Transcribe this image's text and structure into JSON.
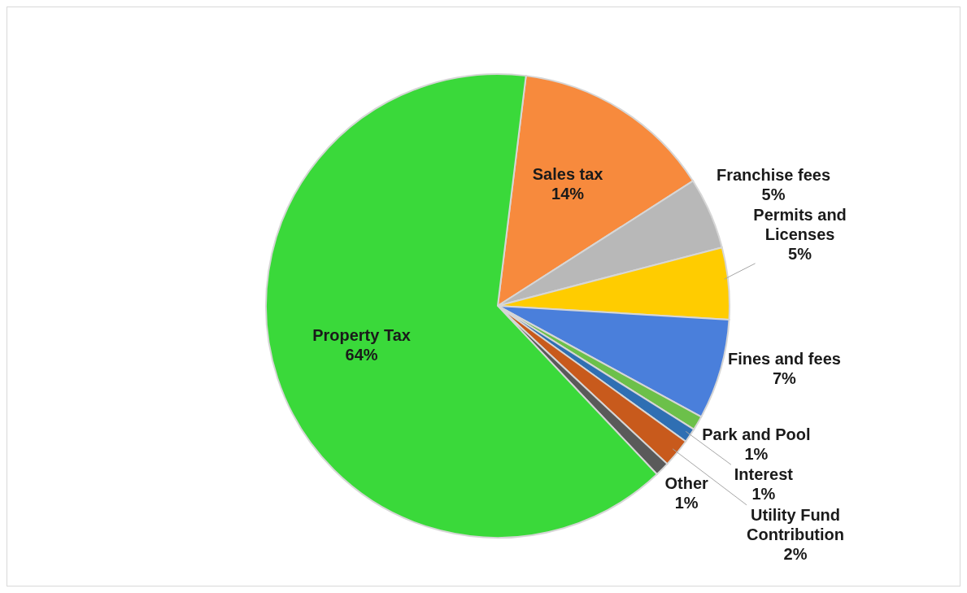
{
  "chart_data": {
    "type": "pie",
    "categories": [
      "Sales tax",
      "Franchise fees",
      "Permits and Licenses",
      "Fines and fees",
      "Park and Pool",
      "Interest",
      "Utility Fund Contribution",
      "Other",
      "Property Tax"
    ],
    "values": [
      14,
      5,
      5,
      7,
      1,
      1,
      2,
      1,
      64
    ],
    "colors": [
      "#f78a3d",
      "#b8b8b8",
      "#ffcc00",
      "#4a7fdb",
      "#6cc04a",
      "#2f6fb3",
      "#c85a1c",
      "#5a5a5a",
      "#3ad93a"
    ],
    "value_labels": [
      "14%",
      "5%",
      "5%",
      "7%",
      "1%",
      "1%",
      "2%",
      "1%",
      "64%"
    ]
  }
}
